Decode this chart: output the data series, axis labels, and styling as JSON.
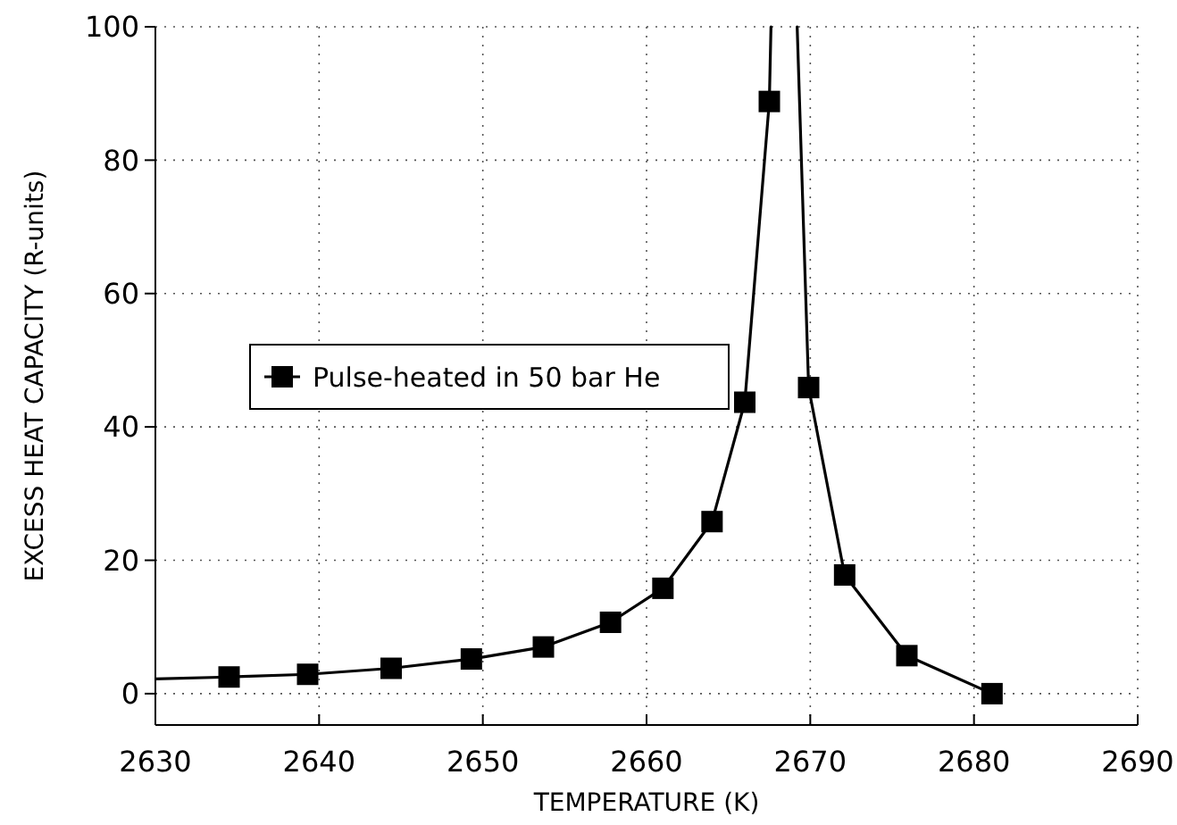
{
  "chart_data": {
    "type": "line",
    "xlabel": "TEMPERATURE (K)",
    "ylabel": "EXCESS HEAT CAPACITY (R-units)",
    "xlim": [
      2630,
      2690
    ],
    "xticks": [
      2630,
      2640,
      2650,
      2660,
      2670,
      2680,
      2690
    ],
    "ylim": [
      -4.7,
      100
    ],
    "yticks": [
      0,
      20,
      40,
      60,
      80,
      100
    ],
    "grid": true,
    "legend": "left",
    "marker": "square",
    "line_style": "solid",
    "series": [
      {
        "name": "Pulse-heated in 50 bar He",
        "color": "#000000",
        "x": [
          2634.5,
          2639.3,
          2644.4,
          2649.3,
          2653.7,
          2657.8,
          2661.0,
          2664.0,
          2666.0,
          2667.5,
          2668.4,
          2669.9,
          2672.1,
          2675.9,
          2681.1
        ],
        "values": [
          2.5,
          2.9,
          3.8,
          5.2,
          7.0,
          10.7,
          15.8,
          25.8,
          43.7,
          88.8,
          null,
          45.9,
          17.8,
          5.7,
          0
        ]
      },
      {
        "type": "line",
        "marker": "none",
        "color": "#000000",
        "x": [
          2630,
          2634.5,
          2650,
          2667.5,
          2667.6,
          2668.4,
          2669.2,
          2669.9
        ],
        "values": [
          2.2,
          2.5,
          null,
          88.8,
          100,
          null,
          100,
          45.9
        ]
      }
    ]
  }
}
